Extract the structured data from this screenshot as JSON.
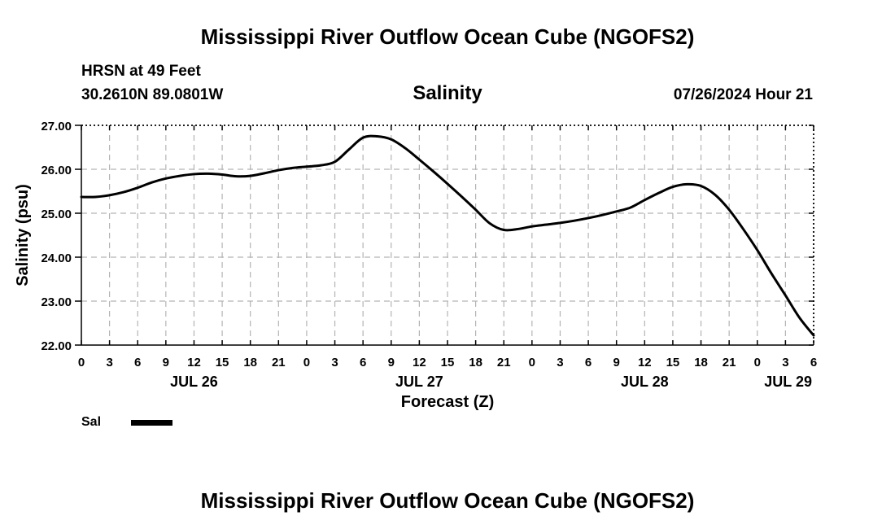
{
  "header": {
    "title": "Mississippi River Outflow Ocean Cube (NGOFS2)",
    "station": "HRSN at 49 Feet",
    "coordinates": "30.2610N  89.0801W",
    "variable": "Salinity",
    "timestamp": "07/26/2024 Hour 21"
  },
  "legend": {
    "label": "Sal",
    "color": "#000000"
  },
  "footer": {
    "title": "Mississippi River Outflow Ocean Cube (NGOFS2)"
  },
  "chart_data": {
    "type": "line",
    "title": "Salinity",
    "xlabel": "Forecast (Z)",
    "ylabel": "Salinity (psu)",
    "ylim": [
      22.0,
      27.0
    ],
    "yticks": [
      "22.00",
      "23.00",
      "24.00",
      "25.00",
      "26.00",
      "27.00"
    ],
    "xlim": [
      0,
      78
    ],
    "xtick_step_hours": 3,
    "xtick_labels": [
      "0",
      "3",
      "6",
      "9",
      "12",
      "15",
      "18",
      "21",
      "0",
      "3",
      "6",
      "9",
      "12",
      "15",
      "18",
      "21",
      "0",
      "3",
      "6",
      "9",
      "12",
      "15",
      "18",
      "21",
      "0",
      "3",
      "6"
    ],
    "day_labels": [
      {
        "label": "JUL 26",
        "hour": 12
      },
      {
        "label": "JUL 27",
        "hour": 36
      },
      {
        "label": "JUL 28",
        "hour": 60
      },
      {
        "label": "JUL 29",
        "hour": 78
      }
    ],
    "grid": true,
    "series": [
      {
        "name": "Sal",
        "color": "#000000",
        "x": [
          0,
          1.5,
          3,
          4.5,
          6,
          7.5,
          9,
          10.5,
          12,
          13.5,
          15,
          16.5,
          18,
          19.5,
          21,
          22.5,
          24,
          25.5,
          27,
          28.5,
          30,
          31.5,
          33,
          34.5,
          36,
          37.5,
          39,
          40.5,
          42,
          43.5,
          45,
          46.5,
          48,
          49.5,
          51,
          52.5,
          54,
          55.5,
          57,
          58.5,
          60,
          61.5,
          63,
          64.5,
          66,
          67.5,
          69,
          70.5,
          72,
          73.5,
          75,
          76.5,
          78
        ],
        "values": [
          25.37,
          25.37,
          25.41,
          25.48,
          25.58,
          25.7,
          25.79,
          25.85,
          25.89,
          25.9,
          25.88,
          25.84,
          25.85,
          25.91,
          25.98,
          26.03,
          26.06,
          26.09,
          26.17,
          26.45,
          26.72,
          26.75,
          26.68,
          26.48,
          26.22,
          25.95,
          25.67,
          25.38,
          25.08,
          24.77,
          24.62,
          24.64,
          24.7,
          24.74,
          24.78,
          24.83,
          24.89,
          24.96,
          25.04,
          25.13,
          25.3,
          25.46,
          25.6,
          25.66,
          25.62,
          25.42,
          25.08,
          24.64,
          24.16,
          23.63,
          23.13,
          22.62,
          22.22
        ]
      }
    ]
  }
}
